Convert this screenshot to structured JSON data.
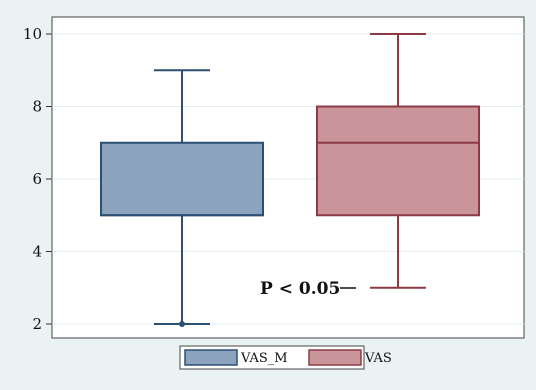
{
  "chart_data": {
    "type": "box",
    "ylim": [
      1.5,
      10.5
    ],
    "yticks": [
      2,
      4,
      6,
      8,
      10
    ],
    "grid": true,
    "legend_position": "bottom",
    "series": [
      {
        "name": "VAS_M",
        "whisker_low": 2,
        "q1": 5,
        "median": 5,
        "q3": 7,
        "whisker_high": 9,
        "outliers": [
          2
        ],
        "fill": "#8ba3bd",
        "stroke": "#2d4f73"
      },
      {
        "name": "VAS",
        "whisker_low": 3,
        "q1": 5,
        "median": 7,
        "q3": 8,
        "whisker_high": 10,
        "outliers": [],
        "fill": "#c9959b",
        "stroke": "#8c3b45"
      }
    ],
    "annotation": "P < 0.05"
  }
}
